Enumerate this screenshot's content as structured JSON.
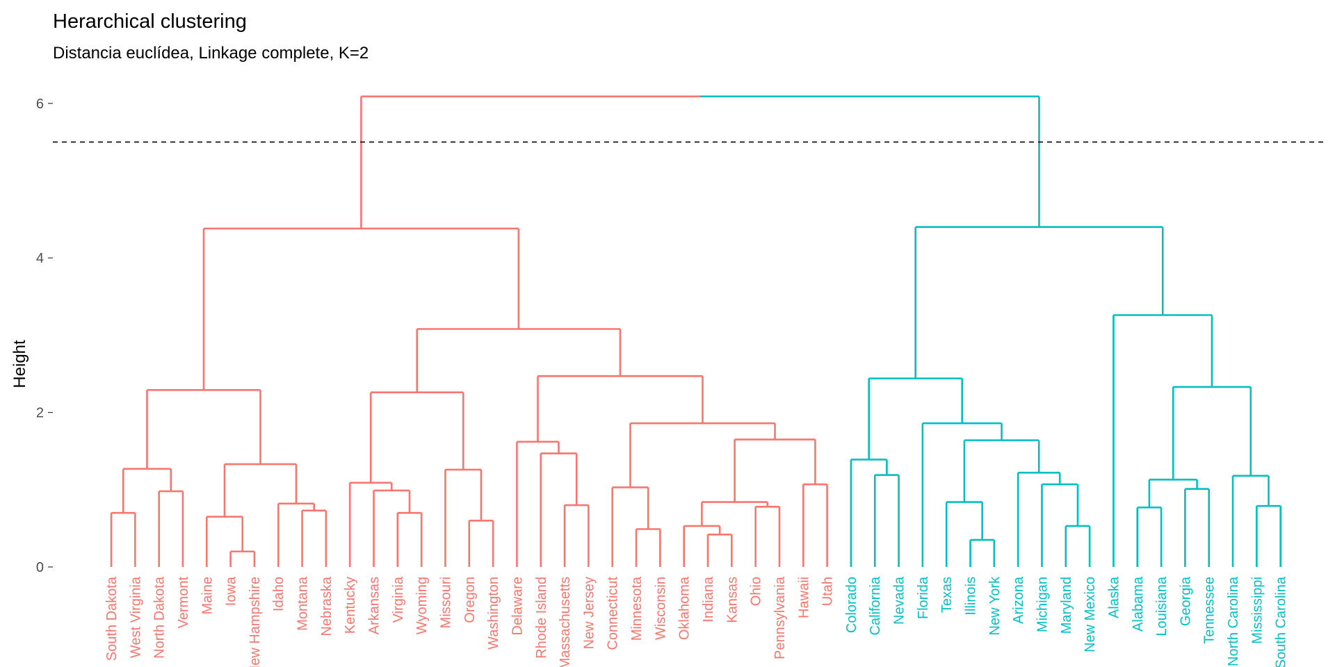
{
  "chart_data": {
    "type": "dendrogram",
    "title": "Herarchical clustering",
    "subtitle": "Distancia euclídea, Linkage complete, K=2",
    "ylabel": "Height",
    "xlabel": "",
    "ylim": [
      0,
      6.1
    ],
    "yticks": [
      0,
      2,
      4,
      6
    ],
    "cut_height": 5.5,
    "k": 2,
    "grid": false,
    "colors": {
      "cluster1": "#F8766D",
      "cluster2": "#00BFC4",
      "cut_line": "#000000"
    },
    "leaves": [
      "South Dakota",
      "West Virginia",
      "North Dakota",
      "Vermont",
      "Maine",
      "Iowa",
      "New Hampshire",
      "Idaho",
      "Montana",
      "Nebraska",
      "Kentucky",
      "Arkansas",
      "Virginia",
      "Wyoming",
      "Missouri",
      "Oregon",
      "Washington",
      "Delaware",
      "Rhode Island",
      "Massachusetts",
      "New Jersey",
      "Connecticut",
      "Minnesota",
      "Wisconsin",
      "Oklahoma",
      "Indiana",
      "Kansas",
      "Ohio",
      "Pennsylvania",
      "Hawaii",
      "Utah",
      "Colorado",
      "California",
      "Nevada",
      "Florida",
      "Texas",
      "Illinois",
      "New York",
      "Arizona",
      "Michigan",
      "Maryland",
      "New Mexico",
      "Alaska",
      "Alabama",
      "Louisiana",
      "Georgia",
      "Tennessee",
      "North Carolina",
      "Mississippi",
      "South Carolina"
    ],
    "leaf_clusters": [
      1,
      1,
      1,
      1,
      1,
      1,
      1,
      1,
      1,
      1,
      1,
      1,
      1,
      1,
      1,
      1,
      1,
      1,
      1,
      1,
      1,
      1,
      1,
      1,
      1,
      1,
      1,
      1,
      1,
      1,
      1,
      2,
      2,
      2,
      2,
      2,
      2,
      2,
      2,
      2,
      2,
      2,
      2,
      2,
      2,
      2,
      2,
      2,
      2,
      2
    ],
    "merges": [
      {
        "l": 0,
        "r": 1,
        "h": 0.7
      },
      {
        "l": 2,
        "r": 3,
        "h": 0.98
      },
      {
        "l": "m0",
        "r": "m1",
        "h": 1.27
      },
      {
        "l": 5,
        "r": 6,
        "h": 0.2
      },
      {
        "l": 4,
        "r": "m3",
        "h": 0.65
      },
      {
        "l": 8,
        "r": 9,
        "h": 0.73
      },
      {
        "l": 7,
        "r": "m5",
        "h": 0.82
      },
      {
        "l": "m4",
        "r": "m6",
        "h": 1.33
      },
      {
        "l": "m2",
        "r": "m7",
        "h": 2.29
      },
      {
        "l": 12,
        "r": 13,
        "h": 0.7
      },
      {
        "l": 11,
        "r": "m9",
        "h": 0.99
      },
      {
        "l": 10,
        "r": "m10",
        "h": 1.09
      },
      {
        "l": 15,
        "r": 16,
        "h": 0.6
      },
      {
        "l": 14,
        "r": "m12",
        "h": 1.26
      },
      {
        "l": "m11",
        "r": "m13",
        "h": 2.26
      },
      {
        "l": 19,
        "r": 20,
        "h": 0.8
      },
      {
        "l": 18,
        "r": "m15",
        "h": 1.47
      },
      {
        "l": 17,
        "r": "m16",
        "h": 1.62
      },
      {
        "l": 22,
        "r": 23,
        "h": 0.49
      },
      {
        "l": 21,
        "r": "m18",
        "h": 1.03
      },
      {
        "l": 25,
        "r": 26,
        "h": 0.42
      },
      {
        "l": 24,
        "r": "m20",
        "h": 0.53
      },
      {
        "l": 27,
        "r": 28,
        "h": 0.78
      },
      {
        "l": "m21",
        "r": "m22",
        "h": 0.84
      },
      {
        "l": 29,
        "r": 30,
        "h": 1.07
      },
      {
        "l": "m23",
        "r": "m24",
        "h": 1.65
      },
      {
        "l": "m19",
        "r": "m25",
        "h": 1.86
      },
      {
        "l": "m17",
        "r": "m26",
        "h": 2.47
      },
      {
        "l": "m14",
        "r": "m27",
        "h": 3.08
      },
      {
        "l": "m8",
        "r": "m28",
        "h": 4.38
      },
      {
        "l": 32,
        "r": 33,
        "h": 1.19
      },
      {
        "l": 31,
        "r": "m30",
        "h": 1.39
      },
      {
        "l": 36,
        "r": 37,
        "h": 0.35
      },
      {
        "l": 35,
        "r": "m32",
        "h": 0.84
      },
      {
        "l": 40,
        "r": 41,
        "h": 0.53
      },
      {
        "l": 39,
        "r": "m34",
        "h": 1.07
      },
      {
        "l": 38,
        "r": "m35",
        "h": 1.22
      },
      {
        "l": "m33",
        "r": "m36",
        "h": 1.64
      },
      {
        "l": 34,
        "r": "m37",
        "h": 1.86
      },
      {
        "l": "m31",
        "r": "m38",
        "h": 2.44
      },
      {
        "l": 43,
        "r": 44,
        "h": 0.77
      },
      {
        "l": 45,
        "r": 46,
        "h": 1.01
      },
      {
        "l": "m40",
        "r": "m41",
        "h": 1.13
      },
      {
        "l": 48,
        "r": 49,
        "h": 0.79
      },
      {
        "l": 47,
        "r": "m43",
        "h": 1.18
      },
      {
        "l": "m42",
        "r": "m44",
        "h": 2.33
      },
      {
        "l": "m45",
        "r": 42,
        "h": 3.26
      },
      {
        "l": "m39",
        "r": "m46",
        "h": 4.4
      },
      {
        "l": "m29",
        "r": "m47",
        "h": 6.09
      }
    ]
  }
}
